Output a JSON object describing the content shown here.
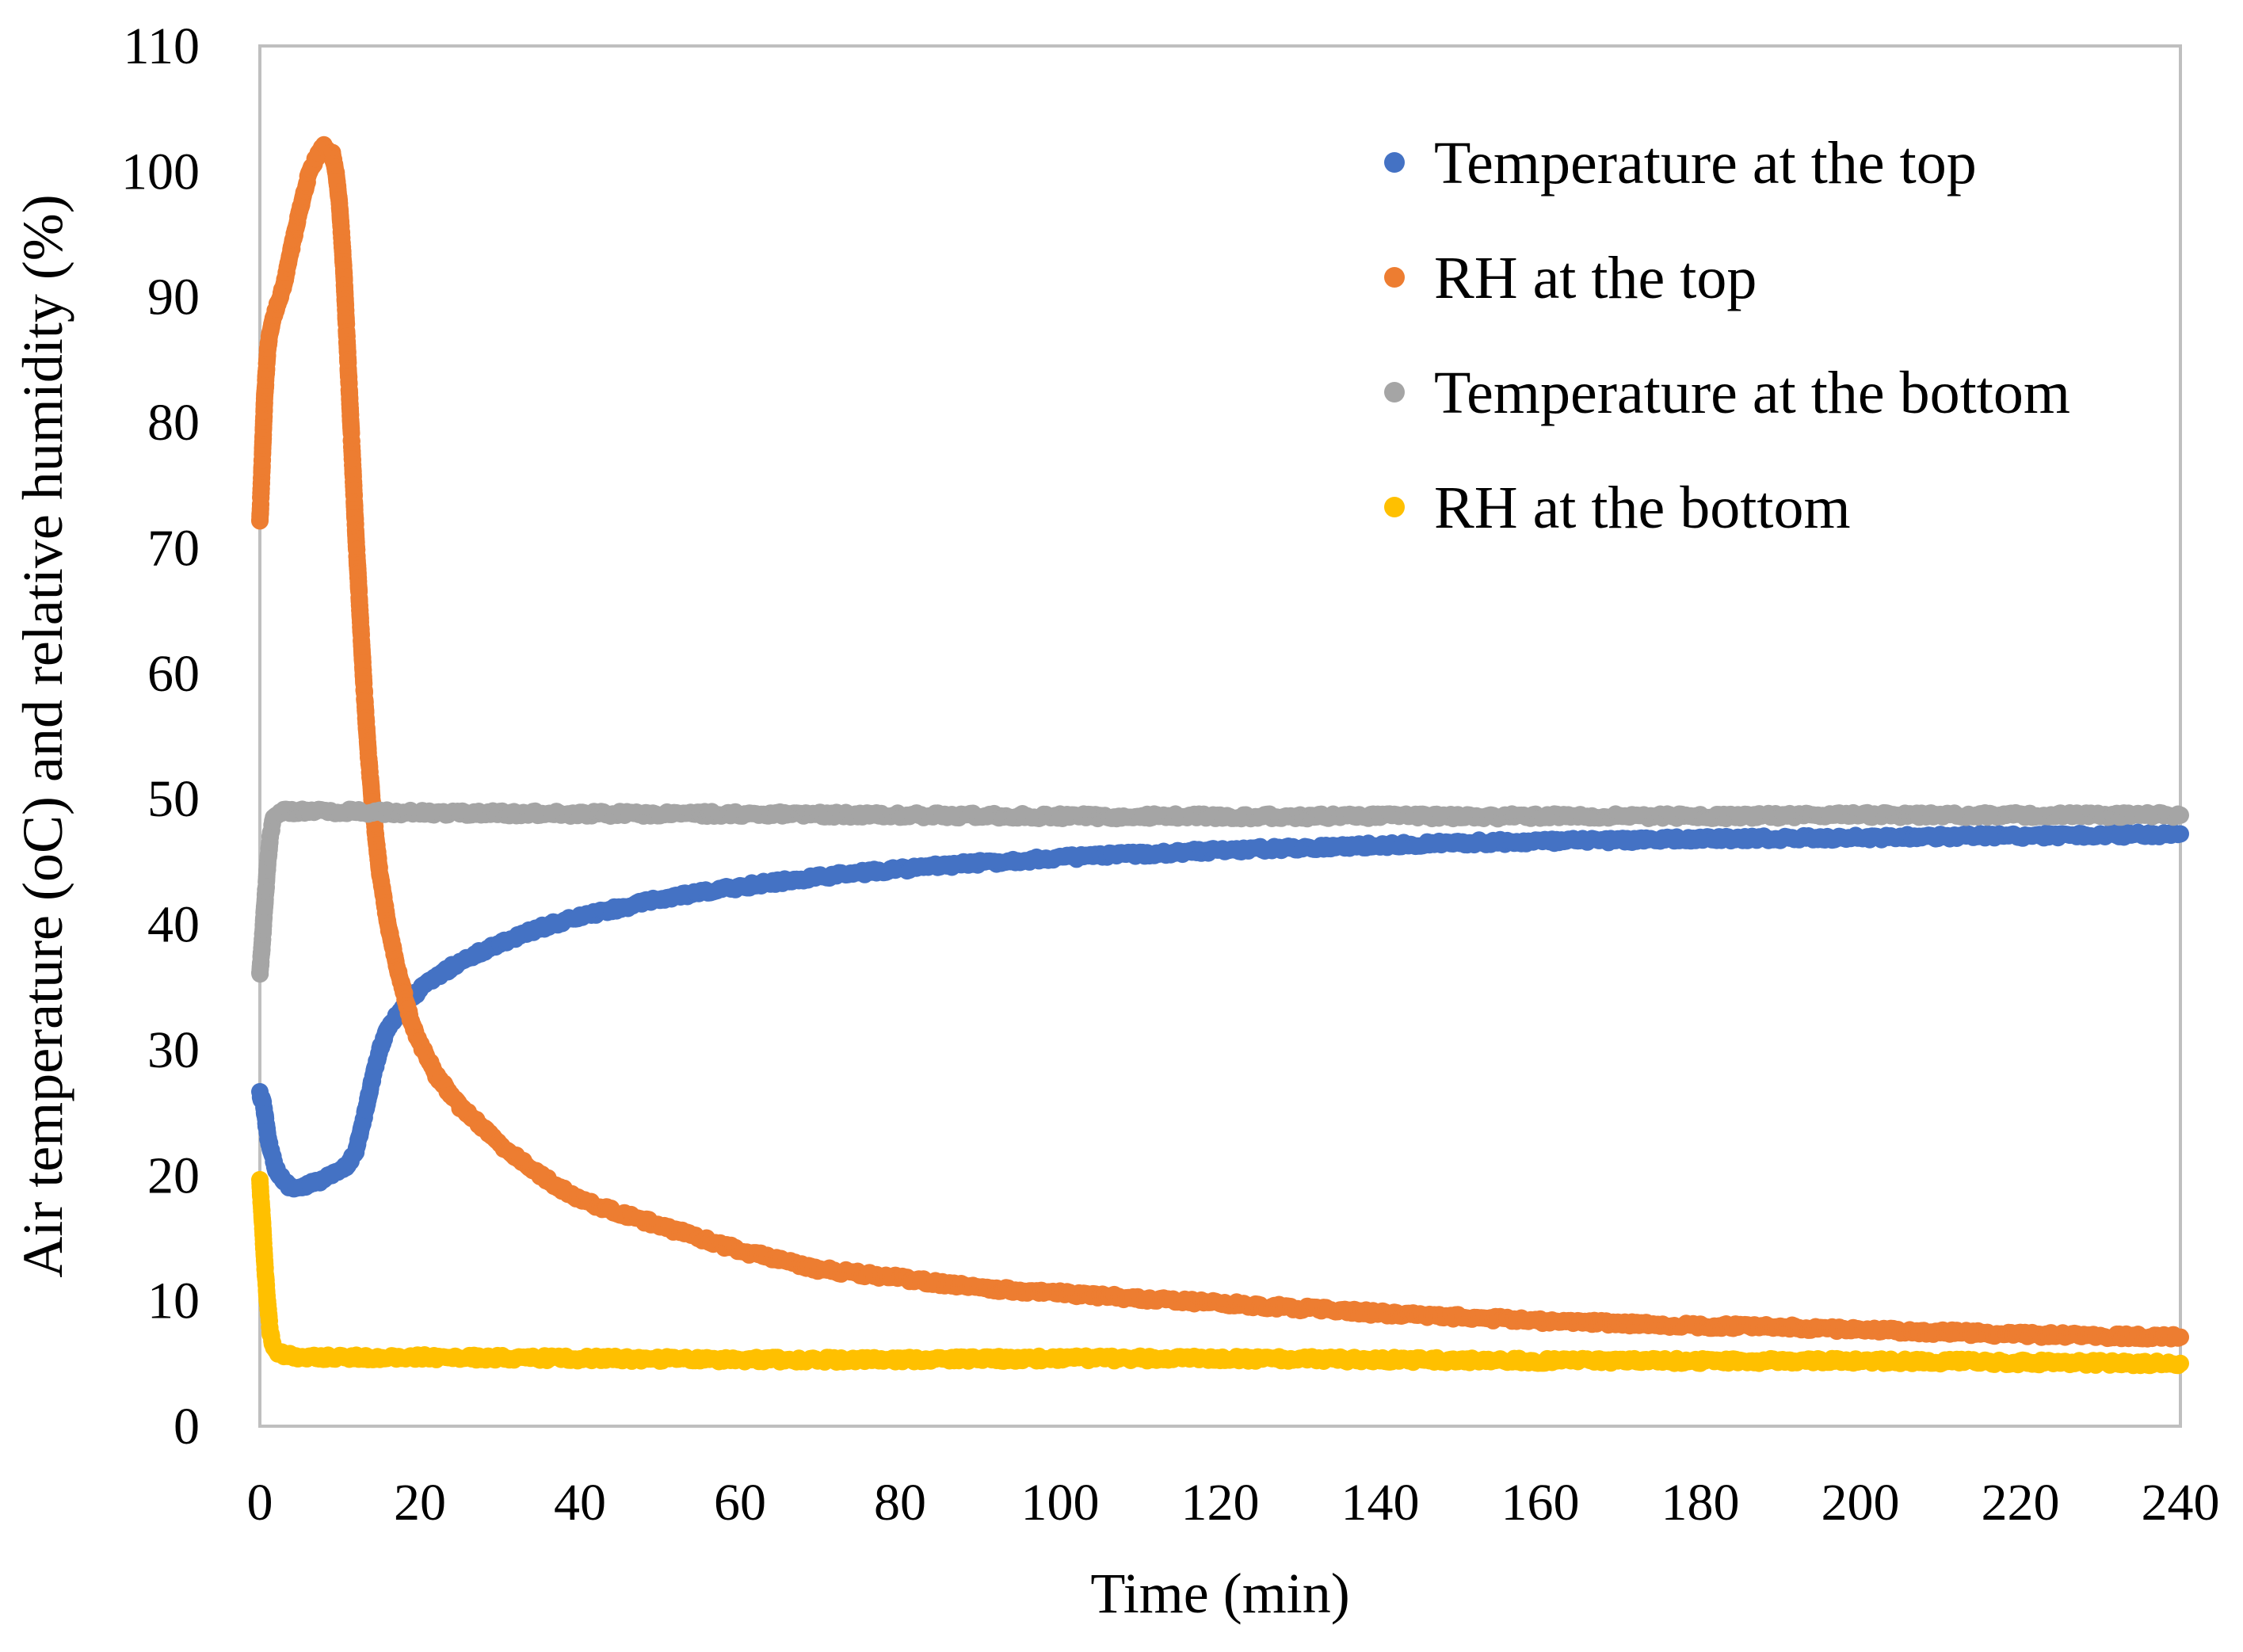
{
  "chart_data": {
    "type": "scatter",
    "title": "",
    "xlabel": "Time  (min)",
    "ylabel": "Air temperature (oC) and relative humidity (%)",
    "xlim": [
      0,
      240
    ],
    "ylim": [
      0,
      110
    ],
    "xticks": [
      0,
      20,
      40,
      60,
      80,
      100,
      120,
      140,
      160,
      180,
      200,
      220,
      240
    ],
    "yticks": [
      0,
      10,
      20,
      30,
      40,
      50,
      60,
      70,
      80,
      90,
      100,
      110
    ],
    "grid": false,
    "legend_position": "top-right",
    "series": [
      {
        "name": "Temperature at the top",
        "color": "#4472C4",
        "x": [
          0,
          0.5,
          1,
          2,
          3,
          4,
          5,
          6,
          8,
          10,
          11,
          12,
          13,
          14,
          15,
          16,
          18,
          20,
          22,
          25,
          30,
          35,
          40,
          50,
          60,
          70,
          80,
          90,
          100,
          110,
          120,
          130,
          140,
          150,
          160,
          170,
          180,
          190,
          200,
          210,
          220,
          230,
          240
        ],
        "y": [
          26.5,
          25.5,
          23,
          20.5,
          19.5,
          19,
          19,
          19.2,
          19.7,
          20.3,
          20.8,
          22,
          24.5,
          27.5,
          30,
          31.8,
          33.5,
          34.8,
          35.8,
          37,
          38.5,
          39.7,
          40.6,
          42,
          43,
          43.8,
          44.4,
          44.9,
          45.3,
          45.6,
          45.9,
          46.1,
          46.3,
          46.5,
          46.6,
          46.7,
          46.8,
          46.85,
          46.9,
          47,
          47.05,
          47.1,
          47.2
        ]
      },
      {
        "name": "RH at the top",
        "color": "#ED7D31",
        "x": [
          0,
          0.3,
          0.6,
          1,
          1.5,
          2,
          3,
          4,
          5,
          6,
          7,
          8,
          9,
          9.5,
          10,
          10.5,
          11,
          11.5,
          12,
          12.5,
          13,
          13.5,
          14,
          14.5,
          15,
          16,
          17,
          18,
          19,
          20,
          22,
          25,
          30,
          35,
          40,
          45,
          50,
          55,
          60,
          70,
          80,
          90,
          100,
          110,
          120,
          130,
          140,
          150,
          160,
          170,
          180,
          190,
          200,
          210,
          220,
          230,
          240
        ],
        "y": [
          72,
          77,
          82,
          86,
          88,
          89,
          91,
          94,
          97,
          99.5,
          101,
          102,
          101.5,
          100,
          97,
          92,
          85,
          78,
          71,
          65,
          59,
          54,
          50,
          47,
          44,
          40,
          37,
          34.5,
          32,
          30.5,
          28,
          25.5,
          22.5,
          20,
          18,
          17,
          16,
          15,
          14,
          12.5,
          11.8,
          11,
          10.6,
          10.2,
          9.8,
          9.4,
          9,
          8.7,
          8.4,
          8.2,
          8,
          7.9,
          7.7,
          7.5,
          7.3,
          7.2,
          7.1
        ]
      },
      {
        "name": "Temperature at the bottom",
        "color": "#A5A5A5",
        "x": [
          0,
          0.3,
          0.6,
          1,
          1.3,
          1.6,
          2,
          2.5,
          3,
          4,
          5,
          10,
          20,
          40,
          60,
          80,
          100,
          120,
          140,
          160,
          180,
          200,
          220,
          240
        ],
        "y": [
          36,
          38.5,
          41.5,
          45,
          47,
          48.2,
          48.8,
          49,
          49,
          49,
          49,
          49,
          48.9,
          48.8,
          48.8,
          48.7,
          48.6,
          48.6,
          48.6,
          48.6,
          48.6,
          48.7,
          48.7,
          48.7
        ]
      },
      {
        "name": "RH at the bottom",
        "color": "#FFC000",
        "x": [
          0,
          0.3,
          0.6,
          1,
          1.3,
          1.6,
          2,
          2.5,
          3,
          4,
          5,
          10,
          20,
          40,
          60,
          80,
          100,
          120,
          140,
          160,
          180,
          200,
          220,
          240
        ],
        "y": [
          19.5,
          16.5,
          13,
          9.5,
          7.5,
          6.5,
          6,
          5.8,
          5.7,
          5.6,
          5.5,
          5.5,
          5.5,
          5.4,
          5.3,
          5.3,
          5.4,
          5.4,
          5.3,
          5.2,
          5.2,
          5.2,
          5.1,
          5
        ]
      }
    ]
  }
}
